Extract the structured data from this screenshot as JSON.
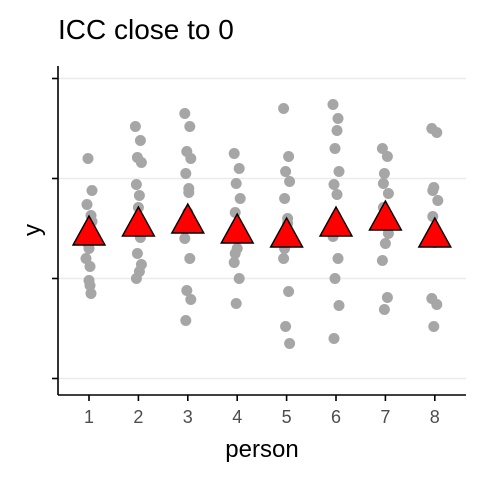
{
  "chart_data": {
    "type": "scatter",
    "title": "ICC close to 0",
    "xlabel": "person",
    "ylabel": "y",
    "categories": [
      "1",
      "2",
      "3",
      "4",
      "5",
      "6",
      "7",
      "8"
    ],
    "ylim": [
      -1.0,
      3.0
    ],
    "y_ticks": [
      0,
      1,
      2,
      3
    ],
    "y_tick_labels_shown": false,
    "grid": "horizontal major",
    "colors": {
      "points": "#a6a6a6",
      "means": "#ff0000",
      "mean_outline": "#000000",
      "grid": "#ebebeb"
    },
    "series": [
      {
        "marker": "circle",
        "points": [
          {
            "x": 1,
            "y": 1.46
          },
          {
            "x": 1,
            "y": 1.63
          },
          {
            "x": 1,
            "y": 1.5
          },
          {
            "x": 1,
            "y": 1.88
          },
          {
            "x": 1,
            "y": 1.74
          },
          {
            "x": 1,
            "y": 1.12
          },
          {
            "x": 1,
            "y": 0.98
          },
          {
            "x": 1,
            "y": 1.2
          },
          {
            "x": 1,
            "y": 0.85
          },
          {
            "x": 1,
            "y": 2.2
          },
          {
            "x": 1,
            "y": 1.57
          },
          {
            "x": 1,
            "y": 1.36
          },
          {
            "x": 1,
            "y": 0.93
          },
          {
            "x": 1,
            "y": 1.3
          },
          {
            "x": 2,
            "y": 2.52
          },
          {
            "x": 2,
            "y": 2.38
          },
          {
            "x": 2,
            "y": 2.21
          },
          {
            "x": 2,
            "y": 2.16
          },
          {
            "x": 2,
            "y": 1.94
          },
          {
            "x": 2,
            "y": 1.83
          },
          {
            "x": 2,
            "y": 1.71
          },
          {
            "x": 2,
            "y": 1.52
          },
          {
            "x": 2,
            "y": 1.41
          },
          {
            "x": 2,
            "y": 1.25
          },
          {
            "x": 2,
            "y": 1.14
          },
          {
            "x": 2,
            "y": 1.0
          },
          {
            "x": 2,
            "y": 1.07
          },
          {
            "x": 2,
            "y": 1.6
          },
          {
            "x": 3,
            "y": 2.65
          },
          {
            "x": 3,
            "y": 2.52
          },
          {
            "x": 3,
            "y": 2.27
          },
          {
            "x": 3,
            "y": 2.2
          },
          {
            "x": 3,
            "y": 2.05
          },
          {
            "x": 3,
            "y": 1.86
          },
          {
            "x": 3,
            "y": 1.66
          },
          {
            "x": 3,
            "y": 1.4
          },
          {
            "x": 3,
            "y": 1.2
          },
          {
            "x": 3,
            "y": 0.88
          },
          {
            "x": 3,
            "y": 0.79
          },
          {
            "x": 3,
            "y": 0.58
          },
          {
            "x": 3,
            "y": 1.9
          },
          {
            "x": 3,
            "y": 1.53
          },
          {
            "x": 4,
            "y": 2.25
          },
          {
            "x": 4,
            "y": 2.1
          },
          {
            "x": 4,
            "y": 1.95
          },
          {
            "x": 4,
            "y": 1.8
          },
          {
            "x": 4,
            "y": 1.66
          },
          {
            "x": 4,
            "y": 1.42
          },
          {
            "x": 4,
            "y": 1.3
          },
          {
            "x": 4,
            "y": 1.16
          },
          {
            "x": 4,
            "y": 1.0
          },
          {
            "x": 4,
            "y": 0.75
          },
          {
            "x": 4,
            "y": 1.48
          },
          {
            "x": 4,
            "y": 1.25
          },
          {
            "x": 5,
            "y": 2.7
          },
          {
            "x": 5,
            "y": 2.22
          },
          {
            "x": 5,
            "y": 2.07
          },
          {
            "x": 5,
            "y": 1.97
          },
          {
            "x": 5,
            "y": 1.8
          },
          {
            "x": 5,
            "y": 1.6
          },
          {
            "x": 5,
            "y": 1.44
          },
          {
            "x": 5,
            "y": 1.2
          },
          {
            "x": 5,
            "y": 0.87
          },
          {
            "x": 5,
            "y": 0.52
          },
          {
            "x": 5,
            "y": 0.35
          },
          {
            "x": 5,
            "y": 1.3
          },
          {
            "x": 5,
            "y": 1.55
          },
          {
            "x": 6,
            "y": 2.74
          },
          {
            "x": 6,
            "y": 2.6
          },
          {
            "x": 6,
            "y": 2.3
          },
          {
            "x": 6,
            "y": 2.07
          },
          {
            "x": 6,
            "y": 1.94
          },
          {
            "x": 6,
            "y": 1.84
          },
          {
            "x": 6,
            "y": 1.62
          },
          {
            "x": 6,
            "y": 1.42
          },
          {
            "x": 6,
            "y": 1.2
          },
          {
            "x": 6,
            "y": 1.0
          },
          {
            "x": 6,
            "y": 0.73
          },
          {
            "x": 6,
            "y": 0.4
          },
          {
            "x": 6,
            "y": 2.48
          },
          {
            "x": 6,
            "y": 1.58
          },
          {
            "x": 7,
            "y": 2.3
          },
          {
            "x": 7,
            "y": 2.22
          },
          {
            "x": 7,
            "y": 2.05
          },
          {
            "x": 7,
            "y": 1.85
          },
          {
            "x": 7,
            "y": 1.71
          },
          {
            "x": 7,
            "y": 1.52
          },
          {
            "x": 7,
            "y": 1.35
          },
          {
            "x": 7,
            "y": 1.18
          },
          {
            "x": 7,
            "y": 0.81
          },
          {
            "x": 7,
            "y": 0.69
          },
          {
            "x": 7,
            "y": 1.45
          },
          {
            "x": 7,
            "y": 1.95
          },
          {
            "x": 8,
            "y": 2.5
          },
          {
            "x": 8,
            "y": 2.46
          },
          {
            "x": 8,
            "y": 1.91
          },
          {
            "x": 8,
            "y": 1.78
          },
          {
            "x": 8,
            "y": 1.62
          },
          {
            "x": 8,
            "y": 1.48
          },
          {
            "x": 8,
            "y": 1.36
          },
          {
            "x": 8,
            "y": 0.8
          },
          {
            "x": 8,
            "y": 0.74
          },
          {
            "x": 8,
            "y": 0.52
          },
          {
            "x": 8,
            "y": 1.42
          },
          {
            "x": 8,
            "y": 1.88
          }
        ]
      },
      {
        "marker": "triangle",
        "x": [
          1,
          2,
          3,
          4,
          5,
          6,
          7,
          8
        ],
        "values": [
          1.48,
          1.57,
          1.6,
          1.5,
          1.46,
          1.57,
          1.63,
          1.46
        ]
      }
    ]
  }
}
